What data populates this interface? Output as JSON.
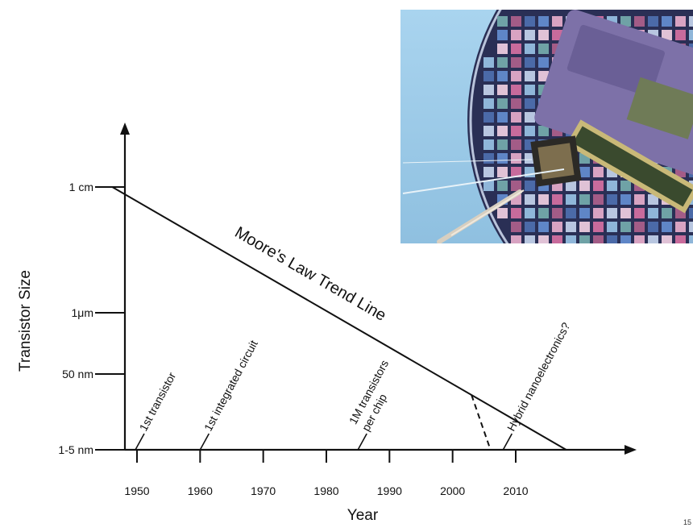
{
  "chart_data": {
    "type": "line",
    "xlabel": "Year",
    "ylabel": "Transistor Size",
    "x_ticks": [
      1950,
      1960,
      1970,
      1980,
      1990,
      2000,
      2010
    ],
    "xlim": [
      1948,
      2030
    ],
    "y_tick_labels": [
      "1-5 nm",
      "50 nm",
      "1μm",
      "1 cm"
    ],
    "series": [
      {
        "name": "Moore's Law Trend Line",
        "points": [
          {
            "x": 1948,
            "y": "1 cm"
          },
          {
            "x": 2018,
            "y": "1-5 nm"
          }
        ]
      }
    ],
    "dashed_segment": {
      "from": {
        "x": 2003
      },
      "to": {
        "x": 2006,
        "y": "1-5 nm"
      }
    },
    "annotations": [
      {
        "text": "1st transistor",
        "x": 1950
      },
      {
        "text": "1st integrated circuit",
        "x": 1960
      },
      {
        "lines": [
          "1M transistors",
          "per chip"
        ],
        "x": 1985
      },
      {
        "text": "Hybrid nanoelectronics?",
        "x": 2008
      }
    ],
    "legend": "none",
    "grid": false
  },
  "page_number": "15",
  "colors": {
    "line": "#111111",
    "background": "#ffffff",
    "photo_sky": "#9ccbe6",
    "wafer": "#2a2f55"
  }
}
